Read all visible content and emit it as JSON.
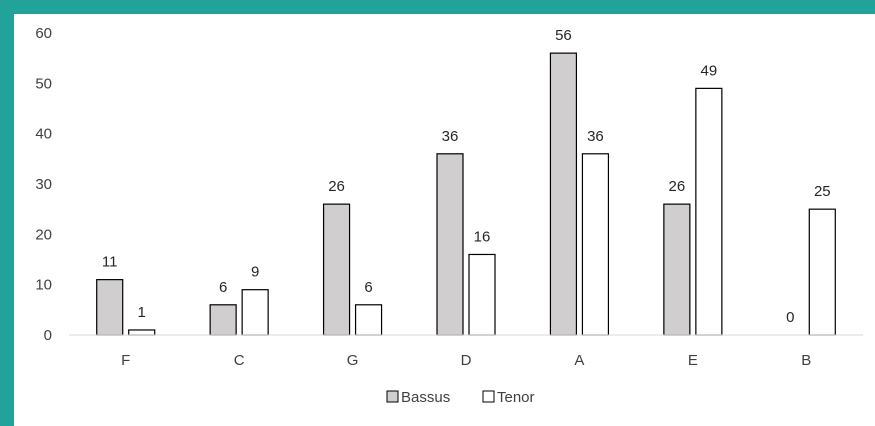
{
  "colors": {
    "frame": "#21a39a",
    "bassus": "#d0cece",
    "tenor": "#ffffff",
    "stroke": "#000000",
    "axis": "#d9d9d9"
  },
  "chart_data": {
    "type": "bar",
    "categories": [
      "F",
      "C",
      "G",
      "D",
      "A",
      "E",
      "B"
    ],
    "series": [
      {
        "name": "Bassus",
        "values": [
          11,
          6,
          26,
          36,
          56,
          26,
          0
        ]
      },
      {
        "name": "Tenor",
        "values": [
          1,
          9,
          6,
          16,
          36,
          49,
          25
        ]
      }
    ],
    "ylim": [
      0,
      60
    ],
    "yticks": [
      0,
      10,
      20,
      30,
      40,
      50,
      60
    ],
    "grid": false,
    "legend_position": "bottom",
    "title": "",
    "xlabel": "",
    "ylabel": ""
  }
}
